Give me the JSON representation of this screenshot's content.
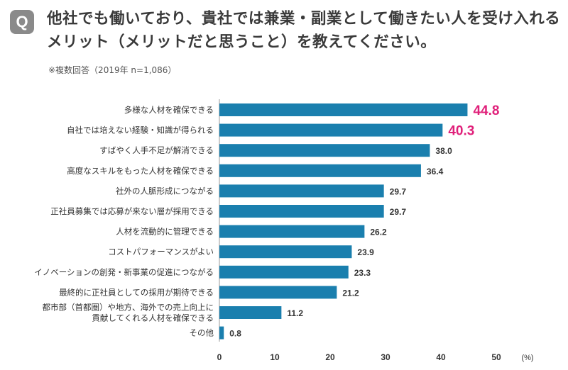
{
  "header": {
    "q_label": "Q",
    "title_line1": "他社でも働いており、貴社では兼業・副業として働きたい人を受け入れる",
    "title_line2": "メリット（メリットだと思うこと）を教えてください。",
    "note": "※複数回答（2019年 n=1,086）"
  },
  "colors": {
    "bar": "#1a7fae",
    "highlight": "#e0207a",
    "axis": "#999999",
    "text": "#333333"
  },
  "chart_data": {
    "type": "bar",
    "orientation": "horizontal",
    "categories": [
      "多様な人材を確保できる",
      "自社では培えない経験・知識が得られる",
      "すばやく人手不足が解消できる",
      "高度なスキルをもった人材を確保できる",
      "社外の人脈形成につながる",
      "正社員募集では応募が来ない層が採用できる",
      "人材を流動的に管理できる",
      "コストパフォーマンスがよい",
      "イノベーションの創発・新事業の促進につながる",
      "最終的に正社員としての採用が期待できる",
      "都市部（首都圏）や地方、海外での売上向上に\n貢献してくれる人材を確保できる",
      "その他"
    ],
    "values": [
      44.8,
      40.3,
      38.0,
      36.4,
      29.7,
      29.7,
      26.2,
      23.9,
      23.3,
      21.2,
      11.2,
      0.8
    ],
    "value_labels": [
      "44.8",
      "40.3",
      "38.0",
      "36.4",
      "29.7",
      "29.7",
      "26.2",
      "23.9",
      "23.3",
      "21.2",
      "11.2",
      "0.8"
    ],
    "highlight_top": 2,
    "xlim": [
      0,
      50
    ],
    "xticks": [
      "0",
      "10",
      "20",
      "30",
      "40",
      "50"
    ],
    "xunit": "(%)",
    "grid": false,
    "legend": "none"
  }
}
